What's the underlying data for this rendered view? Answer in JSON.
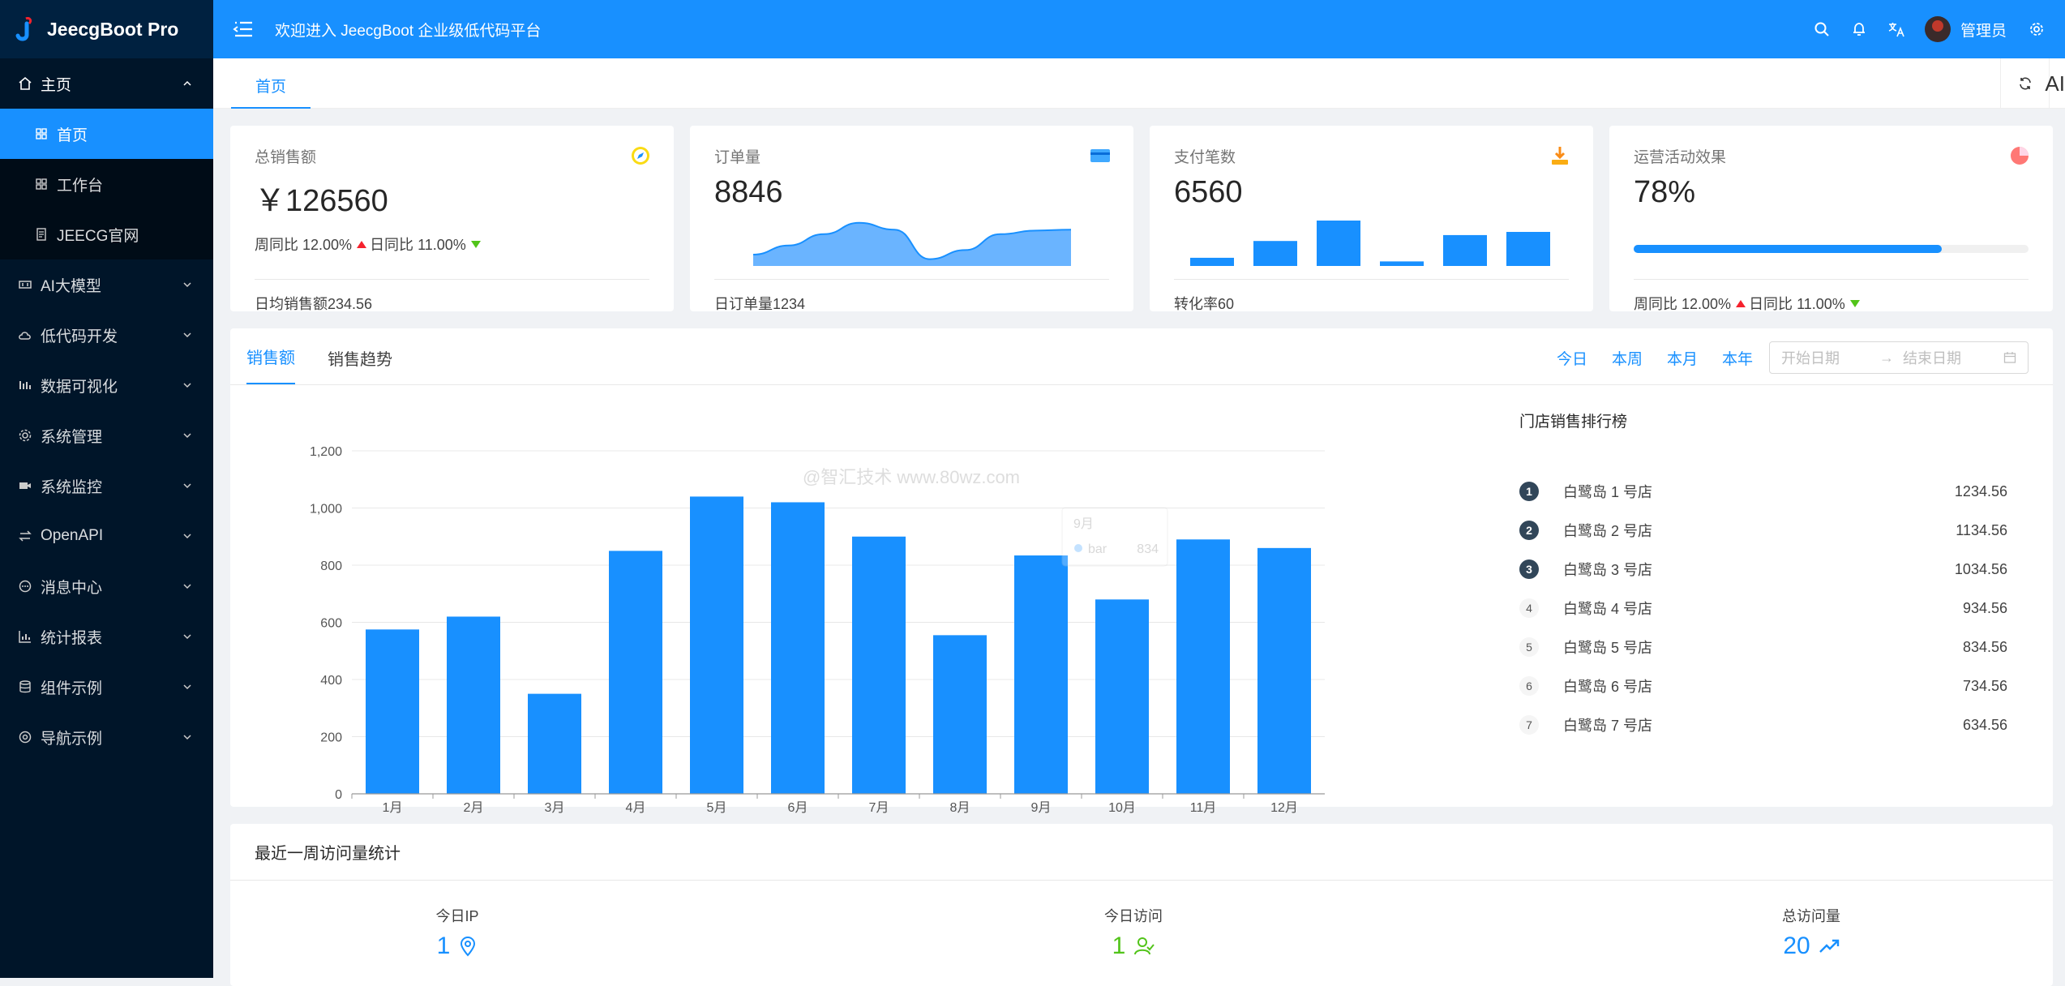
{
  "app": {
    "name": "JeecgBoot Pro",
    "welcome": "欢迎进入 JeecgBoot 企业级低代码平台",
    "username": "管理员",
    "colors": {
      "primary": "#1890ff",
      "sidebar": "#001529",
      "up": "#f5222d",
      "down": "#52c41a",
      "green": "#52c41a"
    }
  },
  "sidebar": {
    "items": [
      {
        "label": "主页",
        "icon": "home-icon",
        "open": true,
        "children": [
          {
            "label": "首页",
            "icon": "grid-icon",
            "active": true
          },
          {
            "label": "工作台",
            "icon": "grid-icon",
            "active": false
          },
          {
            "label": "JEECG官网",
            "icon": "doc-icon",
            "active": false
          }
        ]
      },
      {
        "label": "AI大模型",
        "icon": "ai-icon"
      },
      {
        "label": "低代码开发",
        "icon": "cloud-icon"
      },
      {
        "label": "数据可视化",
        "icon": "chart-icon"
      },
      {
        "label": "系统管理",
        "icon": "gear-icon"
      },
      {
        "label": "系统监控",
        "icon": "video-icon"
      },
      {
        "label": "OpenAPI",
        "icon": "swap-icon"
      },
      {
        "label": "消息中心",
        "icon": "message-icon"
      },
      {
        "label": "统计报表",
        "icon": "bar-chart-icon"
      },
      {
        "label": "组件示例",
        "icon": "layers-icon"
      },
      {
        "label": "导航示例",
        "icon": "compass-icon"
      }
    ]
  },
  "tabs": [
    {
      "label": "首页",
      "active": true
    }
  ],
  "tabbar": {
    "ai_label": "AI"
  },
  "stats": [
    {
      "title": "总销售额",
      "value": "￥126560",
      "icon": "compass-icon",
      "trend": {
        "week_label": "周同比 12.00%",
        "day_label": "日同比 11.00%"
      },
      "footer": "日均销售额234.56"
    },
    {
      "title": "订单量",
      "value": "8846",
      "icon": "card-icon",
      "area": [
        0.25,
        0.45,
        0.7,
        0.95,
        0.8,
        0.15,
        0.35,
        0.7,
        0.78,
        0.8
      ],
      "footer": "日订单量1234"
    },
    {
      "title": "支付笔数",
      "value": "6560",
      "icon": "download-icon",
      "bars": [
        0.18,
        0.55,
        1.0,
        0.1,
        0.68,
        0.75
      ],
      "footer": "转化率60"
    },
    {
      "title": "运营活动效果",
      "value": "78%",
      "icon": "pie-icon",
      "progress": 0.78,
      "trend": {
        "week_label": "周同比 12.00%",
        "day_label": "日同比 11.00%"
      }
    }
  ],
  "sales": {
    "tabs": [
      {
        "label": "销售额",
        "active": true
      },
      {
        "label": "销售趋势",
        "active": false
      }
    ],
    "ranges": [
      "今日",
      "本周",
      "本月",
      "本年"
    ],
    "date_start_placeholder": "开始日期",
    "date_end_placeholder": "结束日期",
    "watermark": "@智汇技术 www.80wz.com",
    "tooltip": {
      "title": "9月",
      "series": "bar",
      "value": "834"
    },
    "ranking_title": "门店销售排行榜",
    "ranking": [
      {
        "rank": "1",
        "name": "白鹭岛 1 号店",
        "value": "1234.56"
      },
      {
        "rank": "2",
        "name": "白鹭岛 2 号店",
        "value": "1134.56"
      },
      {
        "rank": "3",
        "name": "白鹭岛 3 号店",
        "value": "1034.56"
      },
      {
        "rank": "4",
        "name": "白鹭岛 4 号店",
        "value": "934.56"
      },
      {
        "rank": "5",
        "name": "白鹭岛 5 号店",
        "value": "834.56"
      },
      {
        "rank": "6",
        "name": "白鹭岛 6 号店",
        "value": "734.56"
      },
      {
        "rank": "7",
        "name": "白鹭岛 7 号店",
        "value": "634.56"
      }
    ]
  },
  "chart_data": {
    "type": "bar",
    "categories": [
      "1月",
      "2月",
      "3月",
      "4月",
      "5月",
      "6月",
      "7月",
      "8月",
      "9月",
      "10月",
      "11月",
      "12月"
    ],
    "values": [
      575,
      620,
      350,
      850,
      1040,
      1020,
      900,
      555,
      834,
      680,
      890,
      860
    ],
    "ylim": [
      0,
      1200
    ],
    "yticks": [
      "0",
      "200",
      "400",
      "600",
      "800",
      "1,000",
      "1,200"
    ],
    "grid": true,
    "color": "#1890ff"
  },
  "visits": {
    "title": "最近一周访问量统计",
    "items": [
      {
        "label": "今日IP",
        "value": "1",
        "icon": "location-icon",
        "color": "#1890ff"
      },
      {
        "label": "今日访问",
        "value": "1",
        "icon": "users-icon",
        "color": "#52c41a"
      },
      {
        "label": "总访问量",
        "value": "20",
        "icon": "rise-icon",
        "color": "#1890ff"
      }
    ]
  }
}
